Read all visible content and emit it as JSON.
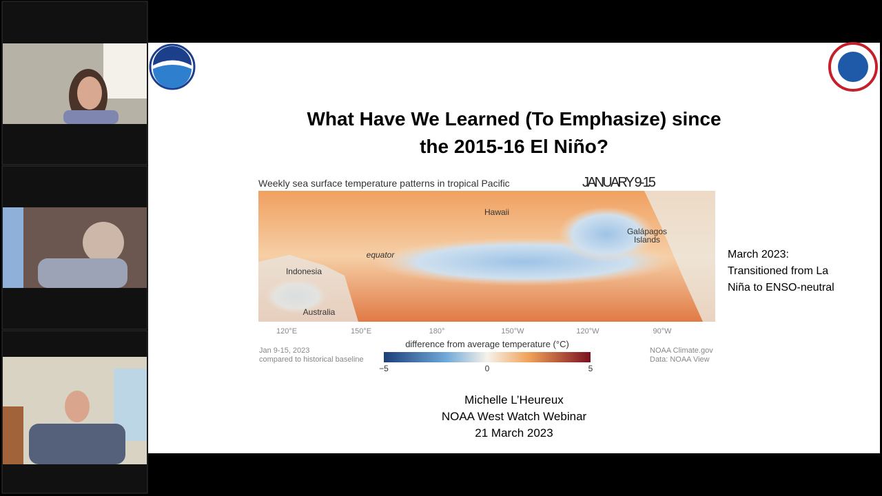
{
  "slide": {
    "title_lines": [
      "What Have We Learned (To Emphasize) since",
      "the 2015-16 El Niño?"
    ],
    "map": {
      "caption": "Weekly sea surface temperature patterns in tropical Pacific",
      "date": "JANUARY 9-15",
      "places": {
        "hawaii": "Hawaii",
        "galapagos": [
          "Galápagos",
          "Islands"
        ],
        "equator": "equator",
        "indonesia": "Indonesia",
        "australia": "Australia"
      },
      "longitudes": [
        "120°E",
        "150°E",
        "180°",
        "150°W",
        "120°W",
        "90°W"
      ],
      "note": [
        "Jan 9-15, 2023",
        "compared to historical baseline"
      ],
      "legend_title": "difference from average temperature (°C)",
      "legend_ticks": [
        "−5",
        "0",
        "5"
      ],
      "credit": [
        "NOAA Climate.gov",
        "Data: NOAA View"
      ]
    },
    "side_note": [
      "March 2023:",
      "Transitioned from La",
      "Niña to  ENSO-neutral"
    ],
    "footer": [
      "Michelle L’Heureux",
      "NOAA West Watch Webinar",
      "21 March 2023"
    ]
  }
}
